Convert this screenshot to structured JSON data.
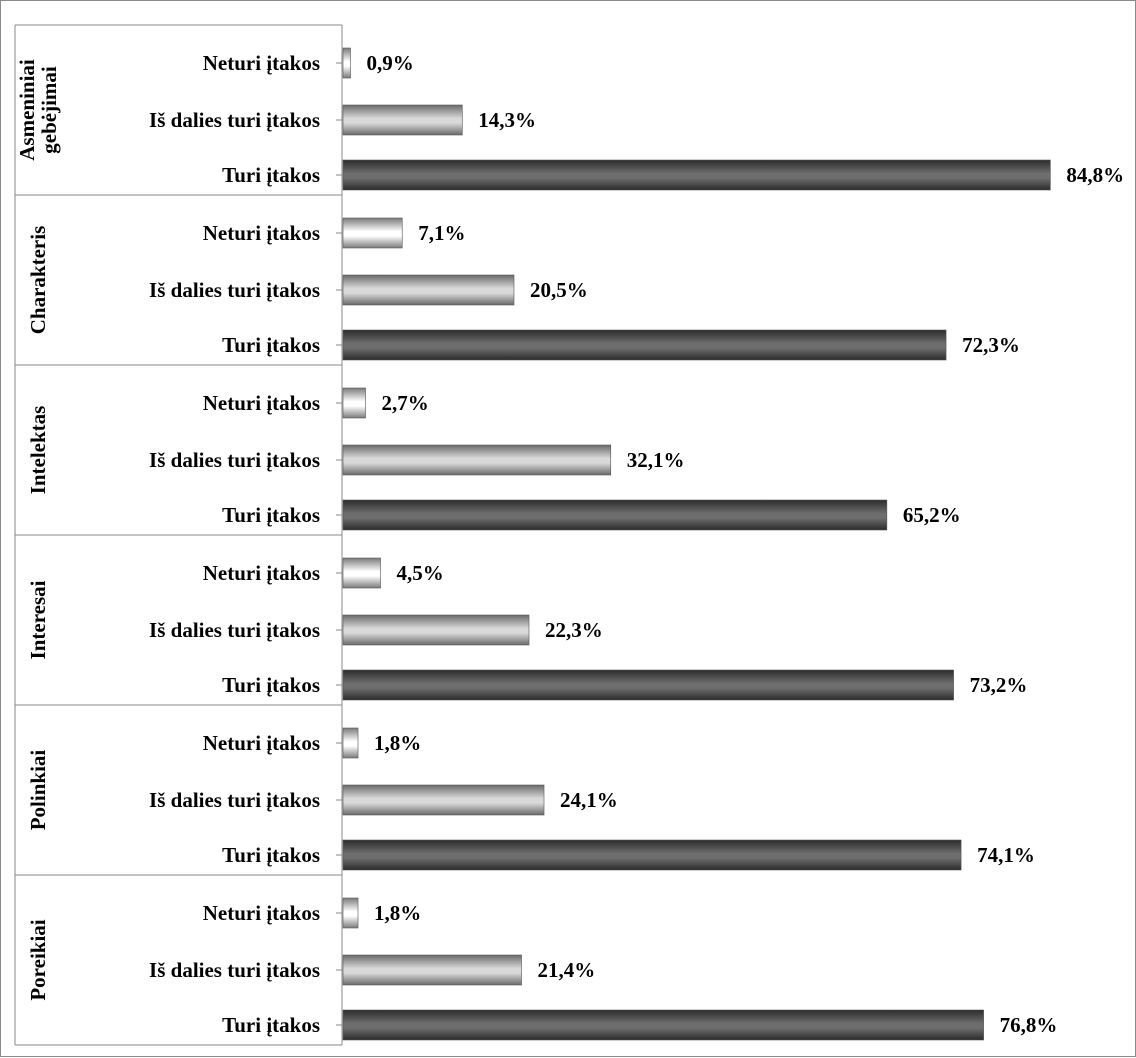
{
  "chart_data": {
    "type": "bar",
    "orientation": "horizontal",
    "xlim": [
      0,
      85
    ],
    "grid": false,
    "legend": "none",
    "groups": [
      {
        "label_lines": [
          "Asmeniniai",
          "gebėjimai"
        ],
        "bars": [
          {
            "category": "Neturi įtakos",
            "value": 0.9,
            "label": "0,9%"
          },
          {
            "category": "Iš dalies turi įtakos",
            "value": 14.3,
            "label": "14,3%"
          },
          {
            "category": "Turi įtakos",
            "value": 84.8,
            "label": "84,8%"
          }
        ]
      },
      {
        "label_lines": [
          "Charakteris"
        ],
        "bars": [
          {
            "category": "Neturi įtakos",
            "value": 7.1,
            "label": "7,1%"
          },
          {
            "category": "Iš dalies turi įtakos",
            "value": 20.5,
            "label": "20,5%"
          },
          {
            "category": "Turi įtakos",
            "value": 72.3,
            "label": "72,3%"
          }
        ]
      },
      {
        "label_lines": [
          "Intelektas"
        ],
        "bars": [
          {
            "category": "Neturi įtakos",
            "value": 2.7,
            "label": "2,7%"
          },
          {
            "category": "Iš dalies turi įtakos",
            "value": 32.1,
            "label": "32,1%"
          },
          {
            "category": "Turi įtakos",
            "value": 65.2,
            "label": "65,2%"
          }
        ]
      },
      {
        "label_lines": [
          "Interesai"
        ],
        "bars": [
          {
            "category": "Neturi įtakos",
            "value": 4.5,
            "label": "4,5%"
          },
          {
            "category": "Iš dalies turi įtakos",
            "value": 22.3,
            "label": "22,3%"
          },
          {
            "category": "Turi įtakos",
            "value": 73.2,
            "label": "73,2%"
          }
        ]
      },
      {
        "label_lines": [
          "Polinkiai"
        ],
        "bars": [
          {
            "category": "Neturi įtakos",
            "value": 1.8,
            "label": "1,8%"
          },
          {
            "category": "Iš dalies turi įtakos",
            "value": 24.1,
            "label": "24,1%"
          },
          {
            "category": "Turi įtakos",
            "value": 74.1,
            "label": "74,1%"
          }
        ]
      },
      {
        "label_lines": [
          "Poreikiai"
        ],
        "bars": [
          {
            "category": "Neturi įtakos",
            "value": 1.8,
            "label": "1,8%"
          },
          {
            "category": "Iš dalies turi įtakos",
            "value": 21.4,
            "label": "21,4%"
          },
          {
            "category": "Turi įtakos",
            "value": 76.8,
            "label": "76,8%"
          }
        ]
      }
    ],
    "category_colors": {
      "Neturi įtakos": [
        "#ffffff",
        "#7a7a7a"
      ],
      "Iš dalies turi įtakos": [
        "#d9d9d9",
        "#6a6a6a"
      ],
      "Turi įtakos": [
        "#6e6e6e",
        "#2b2b2b"
      ]
    }
  }
}
